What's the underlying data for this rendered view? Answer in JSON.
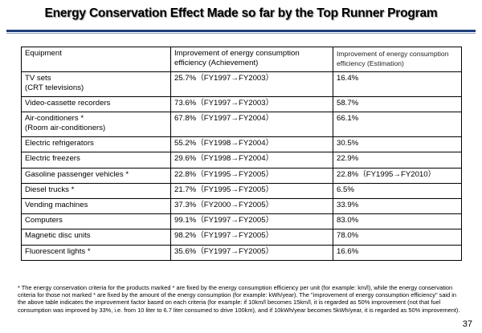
{
  "title": "Energy Conservation Effect Made so far by the Top Runner Program",
  "table": {
    "headers": [
      "Equipment",
      "Improvement of energy consumption efficiency (Achievement)",
      "Improvement of energy consumption efficiency (Estimation)"
    ],
    "rows": [
      {
        "equipment": "TV sets",
        "sub": "(CRT televisions)",
        "achievement": "25.7%（FY1997→FY2003）",
        "estimation": "16.4%"
      },
      {
        "equipment": "Video-cassette recorders",
        "sub": "",
        "achievement": "73.6%（FY1997→FY2003）",
        "estimation": "58.7%"
      },
      {
        "equipment": "Air-conditioners *",
        "sub": "(Room air-conditioners)",
        "achievement": "67.8%（FY1997→FY2004）",
        "estimation": "66.1%"
      },
      {
        "equipment": "Electric refrigerators",
        "sub": "",
        "achievement": "55.2%（FY1998→FY2004）",
        "estimation": "30.5%"
      },
      {
        "equipment": "Electric freezers",
        "sub": "",
        "achievement": "29.6%（FY1998→FY2004）",
        "estimation": "22.9%"
      },
      {
        "equipment": "Gasoline passenger vehicles *",
        "sub": "",
        "achievement": "22.8%（FY1995→FY2005）",
        "estimation": "22.8%（FY1995→FY2010）"
      },
      {
        "equipment": "Diesel trucks *",
        "sub": "",
        "achievement": "21.7%（FY1995→FY2005）",
        "estimation": "6.5%"
      },
      {
        "equipment": "Vending machines",
        "sub": "",
        "achievement": "37.3%（FY2000→FY2005）",
        "estimation": "33.9%"
      },
      {
        "equipment": "Computers",
        "sub": "",
        "achievement": "99.1%（FY1997→FY2005）",
        "estimation": "83.0%"
      },
      {
        "equipment": "Magnetic disc units",
        "sub": "",
        "achievement": "98.2%（FY1997→FY2005）",
        "estimation": "78.0%"
      },
      {
        "equipment": "Fluorescent lights *",
        "sub": "",
        "achievement": "35.6%（FY1997→FY2005）",
        "estimation": "16.6%"
      }
    ]
  },
  "footnote": "* The energy conservation criteria for the products marked * are fixed by the energy consumption efficiency per unit (for example: km/l), while the energy conservation criteria for those not marked * are fixed by the amount of the energy consumption (for example: kWh/year). The \"improvement of energy consumption efficiency\" said in the above table indicates the improvement factor based on each criteria (for example: if 10km/l becomes 15km/l, it is regarded as 50% improvement (not that fuel consumption was improved by 33%, i.e. from 10 liter to 6.7 liter consumed to drive 100km), and if 10kWh/year becomes 5kWh/year, it is regarded as 50% improvement).",
  "page_number": "37",
  "colors": {
    "rule": "#1f3f7a",
    "rule_light": "#8ea3c9"
  }
}
